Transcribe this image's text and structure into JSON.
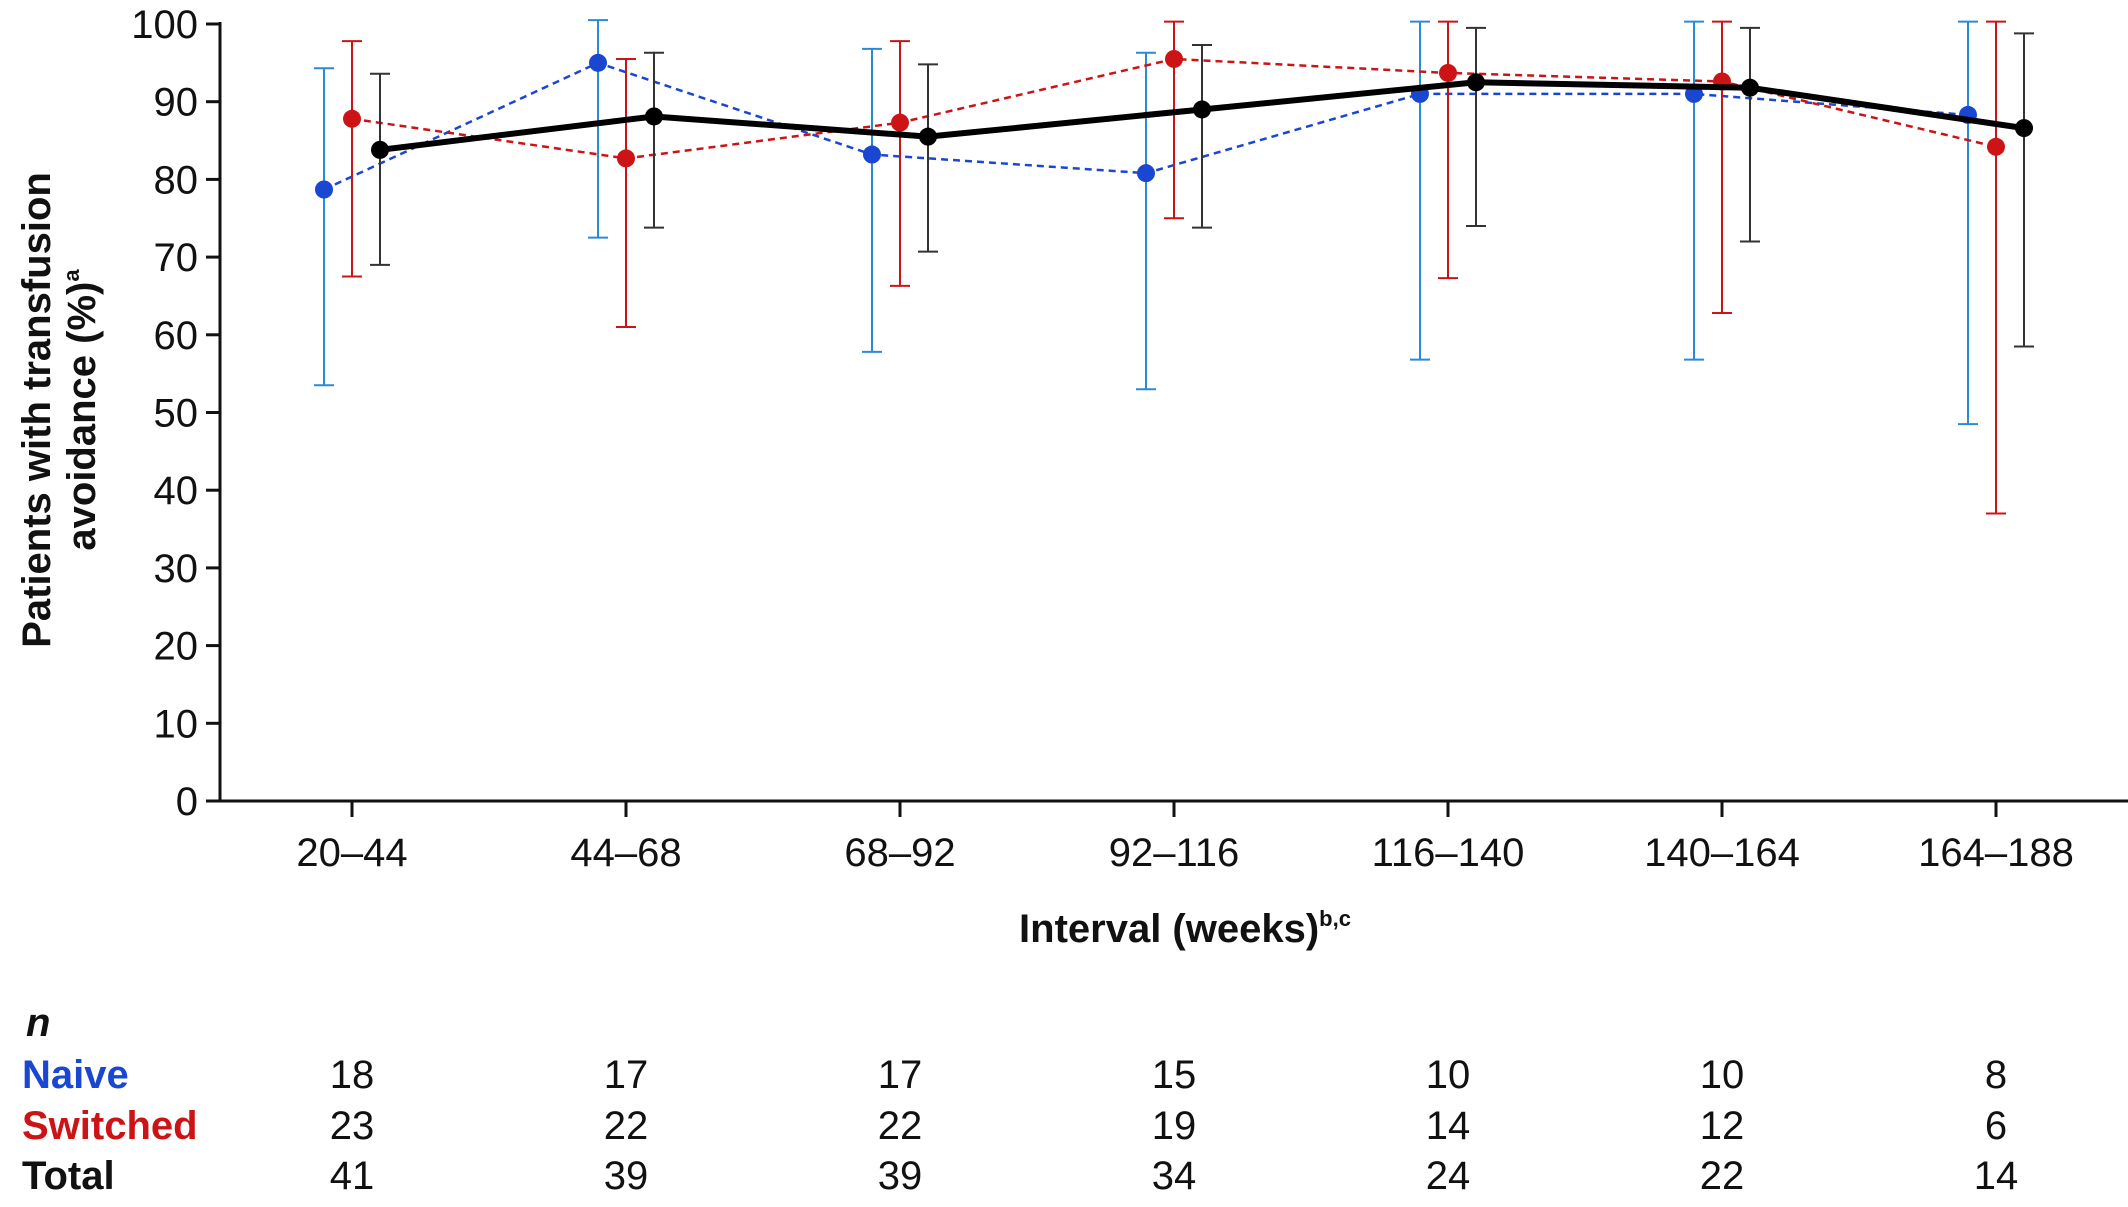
{
  "chart_data": {
    "type": "line",
    "categories": [
      "20–44",
      "44–68",
      "68–92",
      "92–116",
      "116–140",
      "140–164",
      "164–188"
    ],
    "ylim": [
      0,
      100
    ],
    "yticks": [
      0,
      10,
      20,
      30,
      40,
      50,
      60,
      70,
      80,
      90,
      100
    ],
    "ylabel_line1": "Patients with transfusion",
    "ylabel_line2": "avoidance (%)",
    "ylabel_sup": "a",
    "xlabel": "Interval (weeks)",
    "xlabel_sup": "b,c",
    "grid": false,
    "series": [
      {
        "name": "Naive",
        "color": "#1a47d1",
        "errcolor": "#2a8ad6",
        "style": "dashed",
        "values": [
          78.7,
          95.0,
          83.2,
          80.8,
          91.0,
          91.0,
          88.3
        ],
        "lower": [
          53.5,
          72.5,
          57.8,
          53.0,
          56.8,
          56.8,
          48.5
        ],
        "upper": [
          94.3,
          100.5,
          96.8,
          96.3,
          100.3,
          100.3,
          100.3
        ]
      },
      {
        "name": "Switched",
        "color": "#cc1417",
        "errcolor": "#cc1417",
        "style": "dashed",
        "values": [
          87.8,
          82.7,
          87.3,
          95.5,
          93.7,
          92.6,
          84.2
        ],
        "lower": [
          67.5,
          61.0,
          66.3,
          75.0,
          67.3,
          62.8,
          37.0
        ],
        "upper": [
          97.8,
          95.5,
          97.8,
          100.3,
          100.3,
          100.3,
          100.3
        ]
      },
      {
        "name": "Total",
        "color": "#000000",
        "errcolor": "#333333",
        "style": "solid",
        "values": [
          83.8,
          88.1,
          85.5,
          89.0,
          92.5,
          91.8,
          86.6
        ],
        "lower": [
          69.0,
          73.8,
          70.7,
          73.8,
          74.0,
          72.0,
          58.5
        ],
        "upper": [
          93.6,
          96.3,
          94.8,
          97.3,
          99.5,
          99.5,
          98.8
        ]
      }
    ]
  },
  "n_table": {
    "header": "n",
    "rows": [
      {
        "label": "Naive",
        "color": "#1a47d1",
        "values": [
          "18",
          "17",
          "17",
          "15",
          "10",
          "10",
          "8"
        ]
      },
      {
        "label": "Switched",
        "color": "#cc1417",
        "values": [
          "23",
          "22",
          "22",
          "19",
          "14",
          "12",
          "6"
        ]
      },
      {
        "label": "Total",
        "color": "#111111",
        "values": [
          "41",
          "39",
          "39",
          "34",
          "24",
          "22",
          "14"
        ]
      }
    ]
  }
}
